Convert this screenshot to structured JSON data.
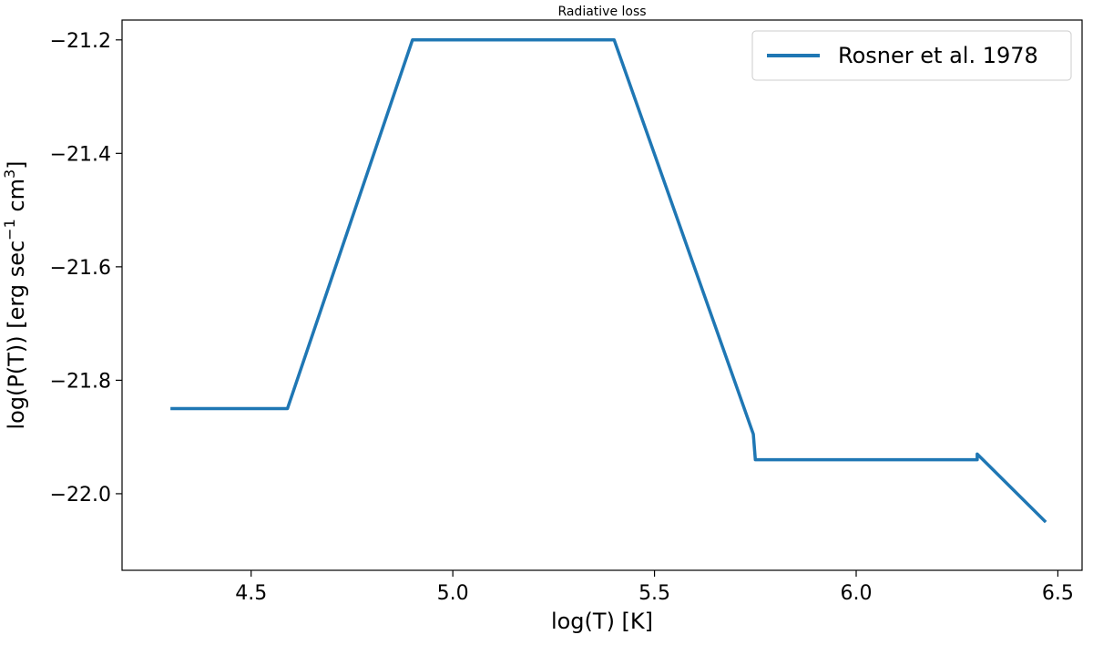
{
  "chart_data": {
    "type": "line",
    "title": "Radiative loss",
    "xlabel": "log(T) [K]",
    "ylabel": {
      "text": "log(P(T)) [erg sec",
      "sup1": "−1",
      "mid": " cm",
      "sup2": "3",
      "end": "]"
    },
    "xlim": [
      4.18,
      6.56
    ],
    "ylim": [
      -22.135,
      -21.165
    ],
    "xticks": [
      {
        "value": 4.5,
        "label": "4.5"
      },
      {
        "value": 5.0,
        "label": "5.0"
      },
      {
        "value": 5.5,
        "label": "5.5"
      },
      {
        "value": 6.0,
        "label": "6.0"
      },
      {
        "value": 6.5,
        "label": "6.5"
      }
    ],
    "yticks": [
      {
        "value": -21.2,
        "label": "−21.2"
      },
      {
        "value": -21.4,
        "label": "−21.4"
      },
      {
        "value": -21.6,
        "label": "−21.6"
      },
      {
        "value": -21.8,
        "label": "−21.8"
      },
      {
        "value": -22.0,
        "label": "−22.0"
      }
    ],
    "grid": false,
    "legend_position": "top-right",
    "series": [
      {
        "name": "Rosner et al. 1978",
        "color": "#1f77b4",
        "x": [
          4.3,
          4.59,
          4.9,
          5.4,
          5.745,
          5.75,
          6.3,
          6.3,
          6.47
        ],
        "y": [
          -21.85,
          -21.85,
          -21.2,
          -21.2,
          -21.895,
          -21.94,
          -21.94,
          -21.93,
          -22.05
        ]
      }
    ]
  }
}
